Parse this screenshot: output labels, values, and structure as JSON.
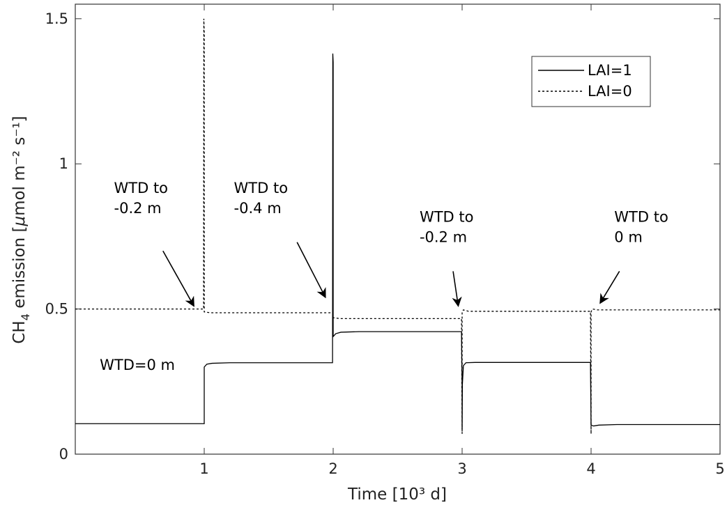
{
  "chart_data": {
    "type": "line",
    "xlabel": "Time [10³ d]",
    "ylabel": "CH4 emission [μmol m⁻² s⁻¹]",
    "ylabel_parts": {
      "main": "CH",
      "sub": "4",
      "rest": " emission [",
      "mu": "μ",
      "tail": "mol m⁻² s⁻¹]"
    },
    "xlim": [
      0,
      5
    ],
    "ylim": [
      0,
      1.55
    ],
    "grid": false,
    "legend_position": "top-right",
    "x_ticks": [
      1,
      2,
      3,
      4,
      5
    ],
    "x_tick_labels": [
      "1",
      "2",
      "3",
      "4",
      "5"
    ],
    "y_ticks": [
      0,
      0.5,
      1,
      1.5
    ],
    "y_tick_labels": [
      "0",
      "0.5",
      "1",
      "1.5"
    ],
    "series": [
      {
        "name": "LAI=1",
        "style": "solid",
        "points": [
          [
            0,
            0.105
          ],
          [
            0.99,
            0.105
          ],
          [
            0.995,
            0.105
          ],
          [
            1.0,
            0.105
          ],
          [
            1.0,
            0.3
          ],
          [
            1.02,
            0.31
          ],
          [
            1.06,
            0.313
          ],
          [
            1.2,
            0.315
          ],
          [
            1.99,
            0.315
          ],
          [
            1.995,
            0.315
          ],
          [
            1.997,
            1.38
          ],
          [
            2.0,
            1.35
          ],
          [
            2.0,
            0.405
          ],
          [
            2.02,
            0.415
          ],
          [
            2.06,
            0.42
          ],
          [
            2.2,
            0.422
          ],
          [
            2.99,
            0.422
          ],
          [
            2.995,
            0.422
          ],
          [
            3.0,
            0.24
          ],
          [
            3.0,
            0.085
          ],
          [
            3.002,
            0.24
          ],
          [
            3.01,
            0.305
          ],
          [
            3.03,
            0.315
          ],
          [
            3.1,
            0.316
          ],
          [
            3.99,
            0.316
          ],
          [
            3.995,
            0.316
          ],
          [
            4.0,
            0.1
          ],
          [
            4.02,
            0.097
          ],
          [
            4.06,
            0.1
          ],
          [
            4.2,
            0.102
          ],
          [
            5.0,
            0.102
          ]
        ]
      },
      {
        "name": "LAI=0",
        "style": "dashed",
        "points": [
          [
            0,
            0.5
          ],
          [
            0.99,
            0.5
          ],
          [
            0.995,
            0.5
          ],
          [
            0.997,
            1.5
          ],
          [
            1.0,
            1.45
          ],
          [
            1.0,
            0.49
          ],
          [
            1.05,
            0.487
          ],
          [
            1.99,
            0.487
          ],
          [
            1.995,
            0.487
          ],
          [
            2.0,
            0.47
          ],
          [
            2.05,
            0.467
          ],
          [
            2.99,
            0.467
          ],
          [
            2.995,
            0.467
          ],
          [
            3.0,
            0.07
          ],
          [
            3.0,
            0.49
          ],
          [
            3.01,
            0.497
          ],
          [
            3.05,
            0.492
          ],
          [
            3.99,
            0.492
          ],
          [
            3.995,
            0.492
          ],
          [
            4.0,
            0.07
          ],
          [
            4.0,
            0.49
          ],
          [
            4.01,
            0.5
          ],
          [
            4.05,
            0.497
          ],
          [
            5.0,
            0.497
          ]
        ]
      }
    ],
    "legend": [
      {
        "label": "LAI=1",
        "style": "solid"
      },
      {
        "label": "LAI=0",
        "style": "dashed"
      }
    ],
    "annotations": [
      {
        "lines": [
          "WTD to",
          "-0.2 m"
        ],
        "text_x": 0.3,
        "text_y": 0.9,
        "arrow_from": [
          0.68,
          0.7
        ],
        "arrow_to": [
          0.92,
          0.51
        ]
      },
      {
        "lines": [
          "WTD to",
          "-0.4 m"
        ],
        "text_x": 1.23,
        "text_y": 0.9,
        "arrow_from": [
          1.72,
          0.73
        ],
        "arrow_to": [
          1.94,
          0.54
        ]
      },
      {
        "lines": [
          "WTD to",
          "-0.2 m"
        ],
        "text_x": 2.67,
        "text_y": 0.8,
        "arrow_from": [
          2.93,
          0.63
        ],
        "arrow_to": [
          2.97,
          0.51
        ]
      },
      {
        "lines": [
          "WTD to",
          "0 m"
        ],
        "text_x": 4.18,
        "text_y": 0.8,
        "arrow_from": [
          4.22,
          0.63
        ],
        "arrow_to": [
          4.07,
          0.52
        ]
      },
      {
        "lines": [
          "WTD=0 m"
        ],
        "text_x": 0.19,
        "text_y": 0.29
      }
    ]
  }
}
